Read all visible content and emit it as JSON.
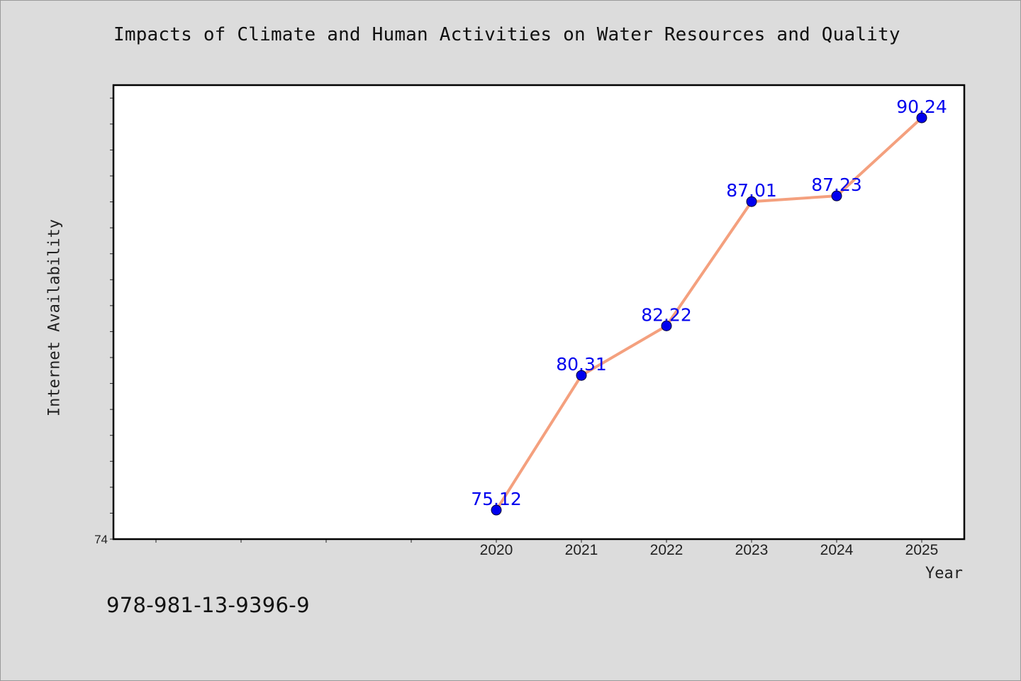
{
  "chart_data": {
    "type": "line",
    "title": "Impacts of Climate and Human Activities on Water Resources and Quality",
    "xlabel": "Year",
    "ylabel": "Internet Availability",
    "categories": [
      "2020",
      "2021",
      "2022",
      "2023",
      "2024",
      "2025"
    ],
    "series": [
      {
        "values": [
          75.12,
          80.31,
          82.22,
          87.01,
          87.23,
          90.24
        ],
        "labels": [
          "75.12",
          "80.31",
          "82.22",
          "87.01",
          "87.23",
          "90.24"
        ]
      }
    ],
    "y_tick_labels": [
      "74"
    ],
    "ylim": [
      74,
      91.5
    ],
    "xlim": [
      2015.5,
      2025.5
    ],
    "grid": false,
    "line_color": "#f4a07e",
    "marker_color": "#0000ee",
    "label_color": "#0000ee"
  },
  "footer": {
    "isbn": "978-981-13-9396-9"
  }
}
